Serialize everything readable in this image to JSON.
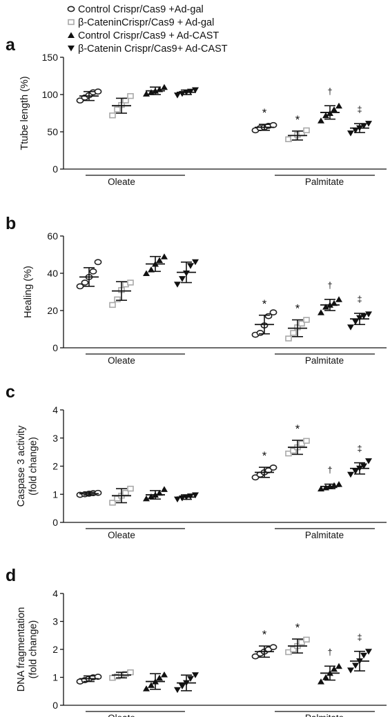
{
  "legend": [
    {
      "label": "Control Crispr/Cas9 +Ad-gal",
      "marker": "circle-open",
      "color": "#222222"
    },
    {
      "label": "β-CateninCrispr/Cas9 + Ad-gal",
      "marker": "square-open",
      "color": "#a8a8a8"
    },
    {
      "label": "Control Crispr/Cas9 + Ad-CAST",
      "marker": "triangle-up",
      "color": "#111111"
    },
    {
      "label": "β-Catenin Crispr/Cas9+ Ad-CAST",
      "marker": "triangle-down",
      "color": "#111111"
    }
  ],
  "group_labels": [
    "Oleate",
    "Palmitate"
  ],
  "chart_data": [
    {
      "panel": "a",
      "type": "scatter",
      "ylabel": "Ttube length (%)",
      "ylim": [
        0,
        150
      ],
      "yticks": [
        0,
        50,
        100,
        150
      ],
      "groups": [
        "Oleate",
        "Palmitate"
      ],
      "series": [
        {
          "name": "Control Crispr/Cas9 +Ad-gal",
          "mean": [
            98,
            56
          ],
          "sd": [
            6,
            4
          ],
          "points": [
            [
              92,
              96,
              99,
              103,
              104
            ],
            [
              52,
              55,
              56,
              58,
              59
            ]
          ],
          "marks": [
            "",
            "*"
          ]
        },
        {
          "name": "β-CateninCrispr/Cas9 + Ad-gal",
          "mean": [
            85,
            45
          ],
          "sd": [
            10,
            6
          ],
          "points": [
            [
              72,
              80,
              86,
              92,
              98
            ],
            [
              40,
              42,
              46,
              48,
              52
            ]
          ],
          "marks": [
            "",
            "*"
          ]
        },
        {
          "name": "Control Crispr/Cas9 + Ad-CAST",
          "mean": [
            105,
            76
          ],
          "sd": [
            5,
            9
          ],
          "points": [
            [
              101,
              103,
              105,
              107,
              110
            ],
            [
              65,
              72,
              75,
              80,
              85
            ]
          ],
          "marks": [
            "",
            "†"
          ]
        },
        {
          "name": "β-Catenin Crispr/Cas9+ Ad-CAST",
          "mean": [
            103,
            55
          ],
          "sd": [
            3,
            6
          ],
          "points": [
            [
              99,
              101,
              103,
              104,
              106
            ],
            [
              48,
              52,
              55,
              58,
              61
            ]
          ],
          "marks": [
            "",
            "‡"
          ]
        }
      ]
    },
    {
      "panel": "b",
      "type": "scatter",
      "ylabel": "Healing (%)",
      "ylim": [
        0,
        60
      ],
      "yticks": [
        0,
        20,
        40,
        60
      ],
      "groups": [
        "Oleate",
        "Palmitate"
      ],
      "series": [
        {
          "name": "Control Crispr/Cas9 +Ad-gal",
          "mean": [
            38,
            12.5
          ],
          "sd": [
            5,
            5
          ],
          "points": [
            [
              33,
              35,
              38,
              41,
              46
            ],
            [
              7,
              8,
              12,
              17,
              19
            ]
          ],
          "marks": [
            "",
            "*"
          ]
        },
        {
          "name": "β-CateninCrispr/Cas9 + Ad-gal",
          "mean": [
            30.5,
            10.5
          ],
          "sd": [
            5,
            4.5
          ],
          "points": [
            [
              23,
              26,
              31,
              34,
              35
            ],
            [
              5,
              8,
              11,
              13,
              15
            ]
          ],
          "marks": [
            "",
            "*"
          ]
        },
        {
          "name": "Control Crispr/Cas9 + Ad-CAST",
          "mean": [
            45,
            23
          ],
          "sd": [
            4,
            3
          ],
          "points": [
            [
              40,
              42,
              45,
              47,
              49
            ],
            [
              19,
              22,
              23,
              24,
              26
            ]
          ],
          "marks": [
            "",
            "†"
          ]
        },
        {
          "name": "β-Catenin Crispr/Cas9+ Ad-CAST",
          "mean": [
            40.5,
            15.5
          ],
          "sd": [
            5.5,
            3
          ],
          "points": [
            [
              34,
              37,
              40,
              44,
              46
            ],
            [
              11,
              14,
              16,
              17,
              18
            ]
          ],
          "marks": [
            "",
            "‡"
          ]
        }
      ]
    },
    {
      "panel": "c",
      "type": "scatter",
      "ylabel": "Caspase 3 activity (fold change)",
      "ylim": [
        0,
        4
      ],
      "yticks": [
        0,
        1,
        2,
        3,
        4
      ],
      "groups": [
        "Oleate",
        "Palmitate"
      ],
      "series": [
        {
          "name": "Control Crispr/Cas9 +Ad-gal",
          "mean": [
            1.02,
            1.78
          ],
          "sd": [
            0.05,
            0.18
          ],
          "points": [
            [
              0.98,
              1.0,
              1.02,
              1.04,
              1.05
            ],
            [
              1.6,
              1.7,
              1.78,
              1.85,
              1.95
            ]
          ],
          "marks": [
            "",
            "*"
          ]
        },
        {
          "name": "β-CateninCrispr/Cas9 + Ad-gal",
          "mean": [
            0.95,
            2.67
          ],
          "sd": [
            0.25,
            0.25
          ],
          "points": [
            [
              0.7,
              0.85,
              0.95,
              1.05,
              1.2
            ],
            [
              2.45,
              2.55,
              2.67,
              2.8,
              2.9
            ]
          ],
          "marks": [
            "",
            "*"
          ]
        },
        {
          "name": "Control Crispr/Cas9 + Ad-CAST",
          "mean": [
            0.98,
            1.28
          ],
          "sd": [
            0.15,
            0.08
          ],
          "points": [
            [
              0.85,
              0.92,
              0.98,
              1.05,
              1.18
            ],
            [
              1.2,
              1.24,
              1.28,
              1.32,
              1.36
            ]
          ],
          "marks": [
            "",
            "†"
          ]
        },
        {
          "name": "β-Catenin Crispr/Cas9+ Ad-CAST",
          "mean": [
            0.9,
            1.92
          ],
          "sd": [
            0.08,
            0.2
          ],
          "points": [
            [
              0.82,
              0.86,
              0.9,
              0.93,
              0.97
            ],
            [
              1.7,
              1.82,
              1.92,
              2.0,
              2.18
            ]
          ],
          "marks": [
            "",
            "‡"
          ]
        }
      ]
    },
    {
      "panel": "d",
      "type": "scatter",
      "ylabel": "DNA fragmentation (fold change)",
      "ylim": [
        0,
        4
      ],
      "yticks": [
        0,
        1,
        2,
        3,
        4
      ],
      "groups": [
        "Oleate",
        "Palmitate"
      ],
      "series": [
        {
          "name": "Control Crispr/Cas9 +Ad-gal",
          "mean": [
            0.95,
            1.92
          ],
          "sd": [
            0.1,
            0.2
          ],
          "points": [
            [
              0.85,
              0.9,
              0.95,
              1.0,
              1.02
            ],
            [
              1.75,
              1.85,
              1.92,
              2.0,
              2.08
            ]
          ],
          "marks": [
            "",
            "*"
          ]
        },
        {
          "name": "β-CateninCrispr/Cas9 + Ad-gal",
          "mean": [
            1.08,
            2.12
          ],
          "sd": [
            0.1,
            0.25
          ],
          "points": [
            [
              0.98,
              1.03,
              1.08,
              1.12,
              1.18
            ],
            [
              1.9,
              2.0,
              2.12,
              2.25,
              2.35
            ]
          ],
          "marks": [
            "",
            "*"
          ]
        },
        {
          "name": "Control Crispr/Cas9 + Ad-CAST",
          "mean": [
            0.85,
            1.15
          ],
          "sd": [
            0.28,
            0.25
          ],
          "points": [
            [
              0.6,
              0.72,
              0.85,
              0.98,
              1.1
            ],
            [
              0.85,
              1.0,
              1.15,
              1.3,
              1.4
            ]
          ],
          "marks": [
            "",
            "†"
          ]
        },
        {
          "name": "β-Catenin Crispr/Cas9+ Ad-CAST",
          "mean": [
            0.8,
            1.58
          ],
          "sd": [
            0.28,
            0.35
          ],
          "points": [
            [
              0.55,
              0.68,
              0.8,
              0.95,
              1.08
            ],
            [
              1.25,
              1.42,
              1.58,
              1.78,
              1.92
            ]
          ],
          "marks": [
            "",
            "‡"
          ]
        }
      ]
    }
  ]
}
